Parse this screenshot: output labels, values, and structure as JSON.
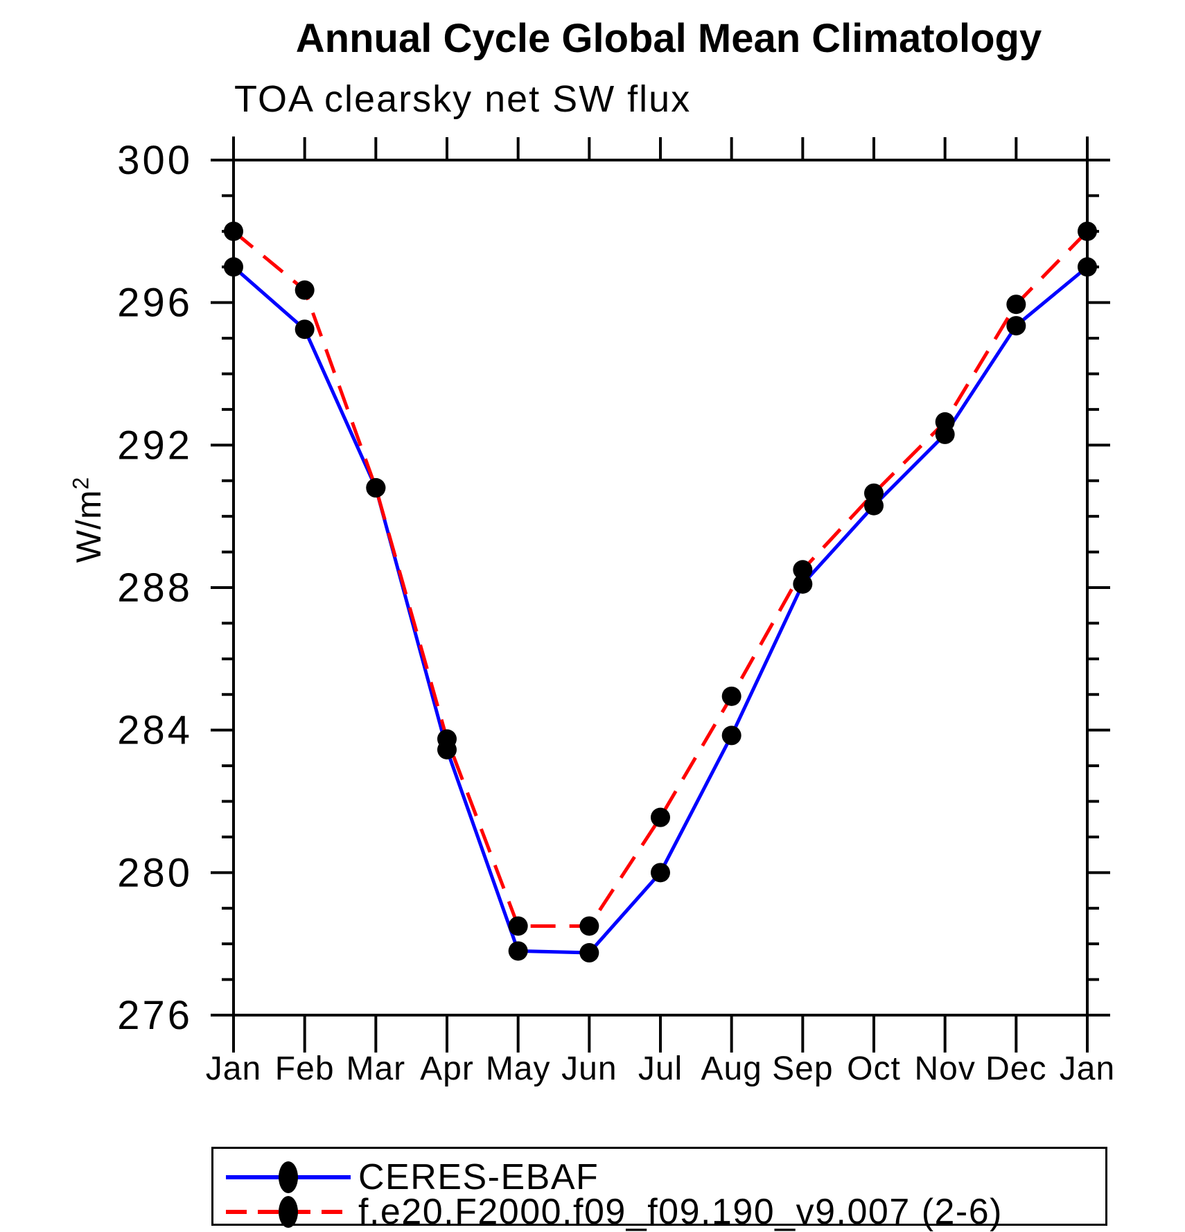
{
  "title": "Annual Cycle Global Mean Climatology",
  "subtitle": "TOA clearsky net SW flux",
  "y_axis": {
    "label": "W/m²",
    "label_base": "W/m",
    "label_sup": "2"
  },
  "chart_data": {
    "type": "line",
    "title": "Annual Cycle Global Mean Climatology",
    "subtitle": "TOA clearsky net SW flux",
    "ylabel": "W/m²",
    "xlabel": "",
    "ylim": [
      276,
      300
    ],
    "ytick_major": [
      300,
      296,
      292,
      288,
      284,
      280,
      276
    ],
    "ytick_minor_step": 1,
    "grid": false,
    "legend_position": "bottom",
    "axis_color": "#000000",
    "categories": [
      "Jan",
      "Feb",
      "Mar",
      "Apr",
      "May",
      "Jun",
      "Jul",
      "Aug",
      "Sep",
      "Oct",
      "Nov",
      "Dec",
      "Jan"
    ],
    "series": [
      {
        "name": "CERES-EBAF",
        "color": "#0000ff",
        "line_style": "solid",
        "marker_color": "#000000",
        "values": [
          297.0,
          295.25,
          290.8,
          283.45,
          277.8,
          277.75,
          280.0,
          283.85,
          288.1,
          290.3,
          292.3,
          295.35,
          297.0
        ]
      },
      {
        "name": "f.e20.F2000.f09_f09.190_v9.007 (2-6)",
        "color": "#ff0000",
        "line_style": "dashed",
        "marker_color": "#000000",
        "values": [
          298.0,
          296.35,
          290.8,
          283.75,
          278.5,
          278.5,
          281.55,
          284.95,
          288.5,
          290.65,
          292.65,
          295.95,
          298.0
        ]
      }
    ]
  }
}
